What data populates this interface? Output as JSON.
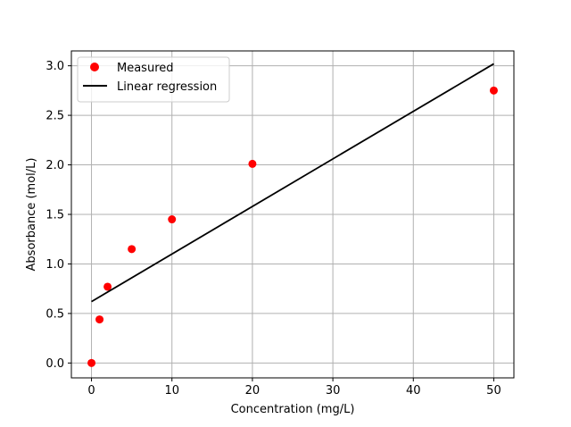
{
  "chart_data": {
    "type": "scatter",
    "xlabel": "Concentration (mg/L)",
    "ylabel": "Absorbance (mol/L)",
    "xlim": [
      -2.5,
      52.5
    ],
    "ylim": [
      -0.15,
      3.15
    ],
    "x_ticks": [
      0,
      10,
      20,
      30,
      40,
      50
    ],
    "x_tick_labels": [
      "0",
      "10",
      "20",
      "30",
      "40",
      "50"
    ],
    "y_ticks": [
      0.0,
      0.5,
      1.0,
      1.5,
      2.0,
      2.5,
      3.0
    ],
    "y_tick_labels": [
      "0.0",
      "0.5",
      "1.0",
      "1.5",
      "2.0",
      "2.5",
      "3.0"
    ],
    "grid": true,
    "legend_position": "top-left",
    "series": [
      {
        "name": "Measured",
        "kind": "scatter",
        "color": "#ff0000",
        "x": [
          0,
          1,
          2,
          5,
          10,
          20,
          50
        ],
        "y": [
          0.0,
          0.44,
          0.77,
          1.15,
          1.45,
          2.01,
          2.75
        ]
      },
      {
        "name": "Linear regression",
        "kind": "line",
        "color": "#000000",
        "x": [
          0,
          50
        ],
        "y": [
          0.62,
          3.02
        ]
      }
    ]
  }
}
